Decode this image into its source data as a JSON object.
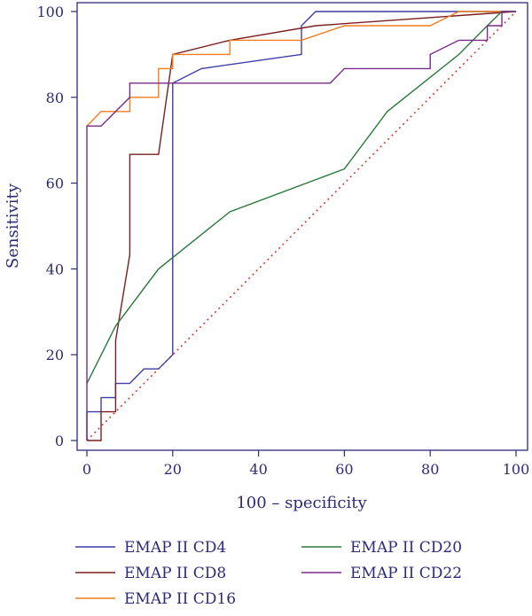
{
  "chart_data": {
    "type": "line",
    "title": "",
    "xlabel": "100 – specificity",
    "ylabel": "Sensitivity",
    "xlim": [
      0,
      100
    ],
    "ylim": [
      0,
      100
    ],
    "x_ticks": [
      "0",
      "20",
      "40",
      "60",
      "80",
      "100"
    ],
    "y_ticks": [
      "0",
      "20",
      "40",
      "60",
      "80",
      "100"
    ],
    "grid": false,
    "legend_position": "bottom",
    "reference_line": {
      "style": "dotted",
      "color": "#cc3333",
      "from": [
        0,
        0
      ],
      "to": [
        100,
        100
      ]
    },
    "series": [
      {
        "name": "EMAP II CD4",
        "color": "#3d3da8",
        "points": [
          [
            0,
            0
          ],
          [
            0,
            6.7
          ],
          [
            3.3,
            6.7
          ],
          [
            3.3,
            10
          ],
          [
            6.7,
            10
          ],
          [
            6.7,
            13.3
          ],
          [
            10,
            13.3
          ],
          [
            10,
            13.3
          ],
          [
            13.3,
            16.7
          ],
          [
            16.7,
            16.7
          ],
          [
            20,
            20
          ],
          [
            20,
            83.3
          ],
          [
            26.7,
            86.7
          ],
          [
            50,
            90
          ],
          [
            50,
            96.7
          ],
          [
            53.3,
            100
          ],
          [
            90,
            100
          ],
          [
            100,
            100
          ]
        ]
      },
      {
        "name": "EMAP II CD8",
        "color": "#7a1f1f",
        "points": [
          [
            0,
            0
          ],
          [
            3.3,
            0
          ],
          [
            3.3,
            6.7
          ],
          [
            6.7,
            6.7
          ],
          [
            6.7,
            23.3
          ],
          [
            10,
            43.3
          ],
          [
            10,
            66.7
          ],
          [
            16.7,
            66.7
          ],
          [
            20,
            90
          ],
          [
            33.3,
            93.3
          ],
          [
            53.3,
            96.7
          ],
          [
            100,
            100
          ]
        ]
      },
      {
        "name": "EMAP II CD16",
        "color": "#f07d1f",
        "points": [
          [
            0,
            73.3
          ],
          [
            3.3,
            76.7
          ],
          [
            10,
            76.7
          ],
          [
            10,
            80
          ],
          [
            16.7,
            80
          ],
          [
            16.7,
            86.7
          ],
          [
            20,
            86.7
          ],
          [
            20,
            90
          ],
          [
            33.3,
            90
          ],
          [
            33.3,
            93.3
          ],
          [
            50,
            93.3
          ],
          [
            60,
            96.7
          ],
          [
            80,
            96.7
          ],
          [
            86.7,
            100
          ],
          [
            100,
            100
          ]
        ]
      },
      {
        "name": "EMAP II CD20",
        "color": "#2a7a3a",
        "points": [
          [
            0,
            13.3
          ],
          [
            6.7,
            26.7
          ],
          [
            16.7,
            40
          ],
          [
            33.3,
            53.3
          ],
          [
            60,
            63.3
          ],
          [
            70,
            76.7
          ],
          [
            86.7,
            90
          ],
          [
            93.3,
            96.7
          ],
          [
            96.7,
            100
          ],
          [
            100,
            100
          ]
        ]
      },
      {
        "name": "EMAP II CD22",
        "color": "#7a2a8a",
        "points": [
          [
            0,
            0
          ],
          [
            0,
            73.3
          ],
          [
            3.3,
            73.3
          ],
          [
            10,
            80
          ],
          [
            10,
            83.3
          ],
          [
            56.7,
            83.3
          ],
          [
            60,
            86.7
          ],
          [
            80,
            86.7
          ],
          [
            80,
            90
          ],
          [
            86.7,
            93.3
          ],
          [
            93.3,
            93.3
          ],
          [
            93.3,
            96.7
          ],
          [
            96.7,
            96.7
          ],
          [
            96.7,
            100
          ],
          [
            100,
            100
          ]
        ]
      }
    ]
  }
}
